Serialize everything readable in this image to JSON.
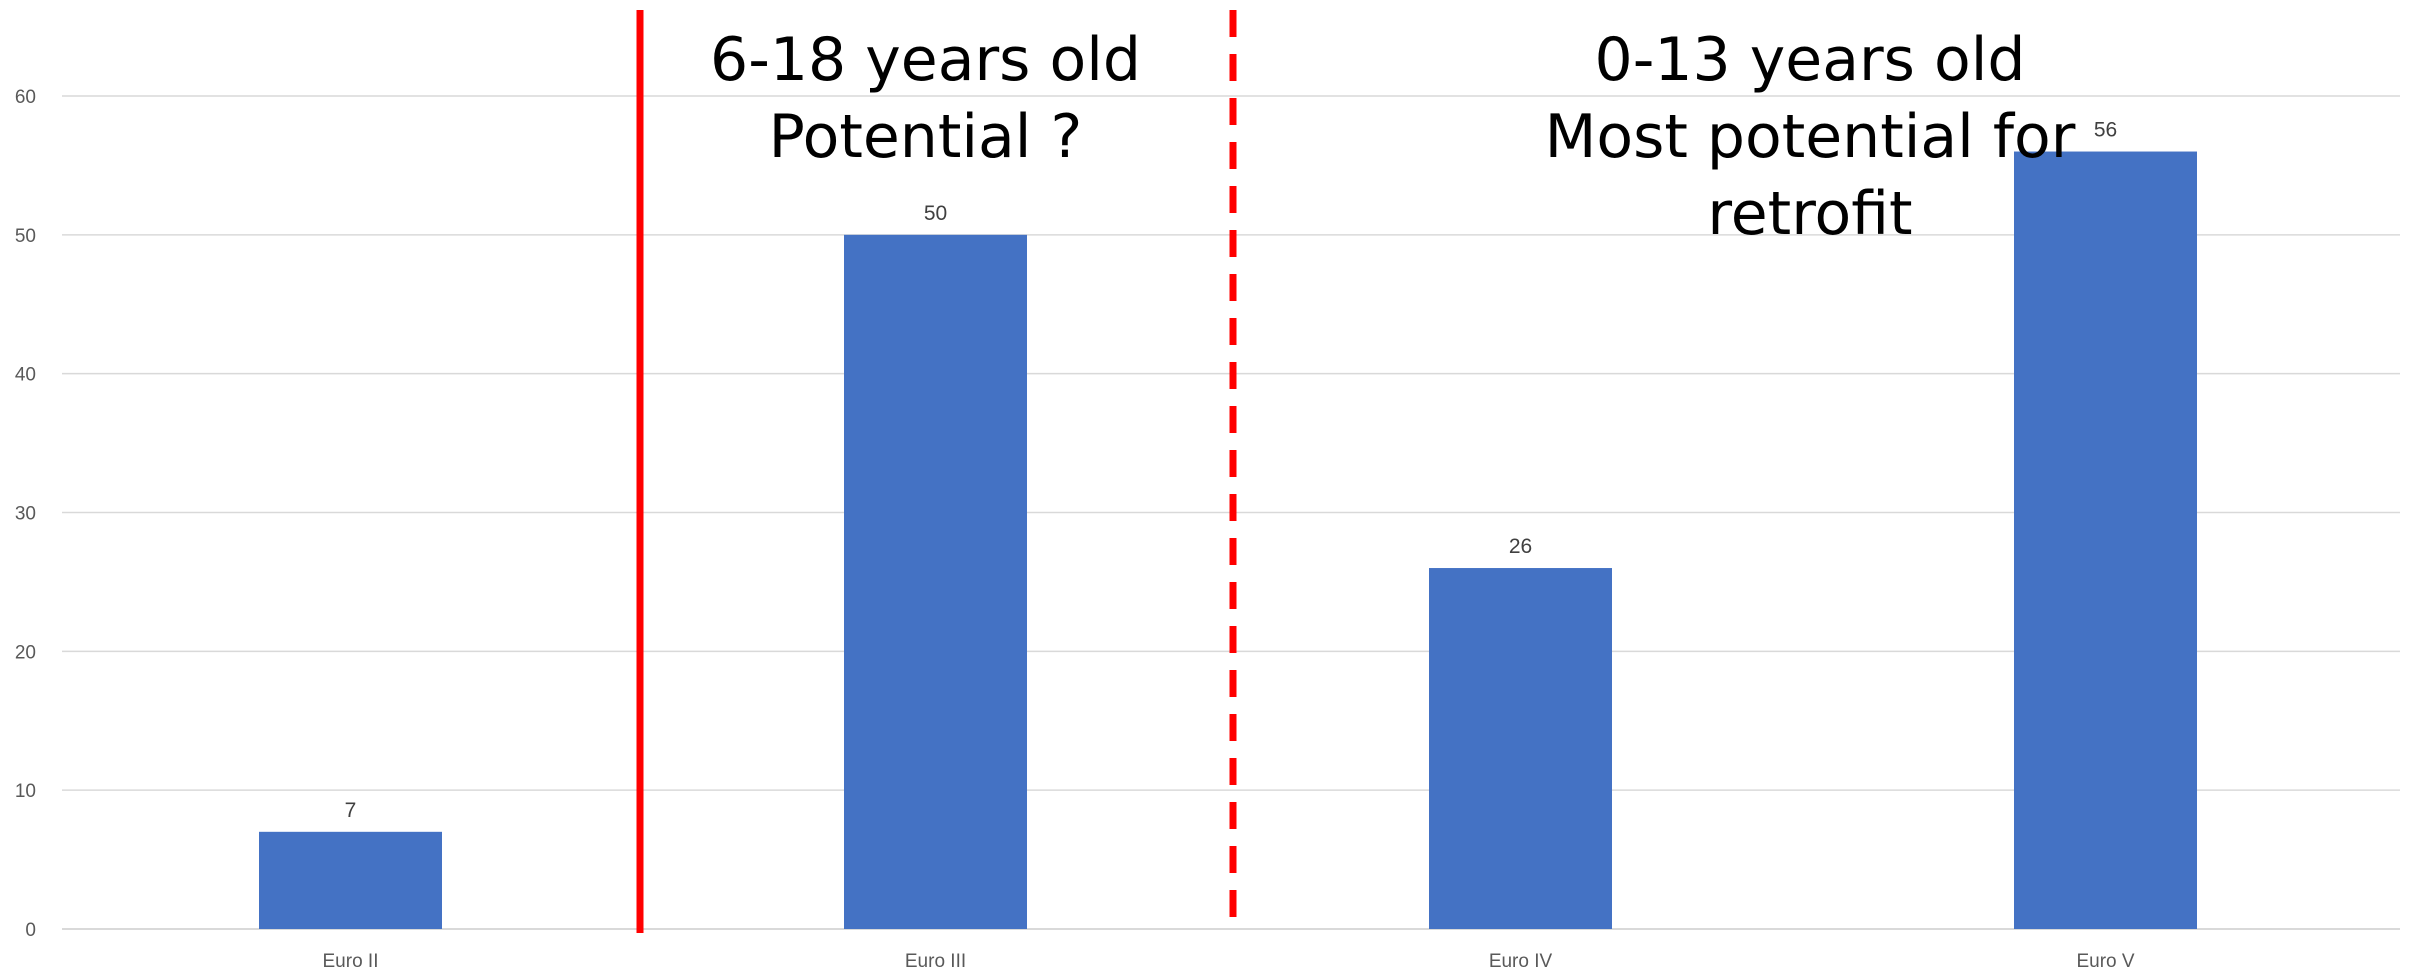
{
  "chart_data": {
    "type": "bar",
    "categories": [
      "Euro II",
      "Euro III",
      "Euro IV",
      "Euro V"
    ],
    "values": [
      7,
      50,
      26,
      56
    ],
    "data_labels": [
      "7",
      "50",
      "26",
      "56"
    ],
    "title": "",
    "xlabel": "",
    "ylabel": "",
    "ylim": [
      0,
      60
    ],
    "y_ticks": [
      "0",
      "10",
      "20",
      "30",
      "40",
      "50",
      "60"
    ],
    "grid": true,
    "bar_color": "#4472C4",
    "gridline_color": "#D9D9D9",
    "annotations": [
      {
        "lines": [
          "6-18 years old",
          "Potential ?"
        ],
        "region": "Euro III"
      },
      {
        "lines": [
          "0-13 years old",
          "Most potential for",
          "retrofit"
        ],
        "region": "Euro IV – Euro V"
      }
    ],
    "dividers": [
      {
        "style": "solid",
        "color": "#FF0000",
        "between": [
          "Euro II",
          "Euro III"
        ]
      },
      {
        "style": "dashed",
        "color": "#FF0000",
        "between": [
          "Euro III",
          "Euro IV"
        ]
      }
    ]
  }
}
